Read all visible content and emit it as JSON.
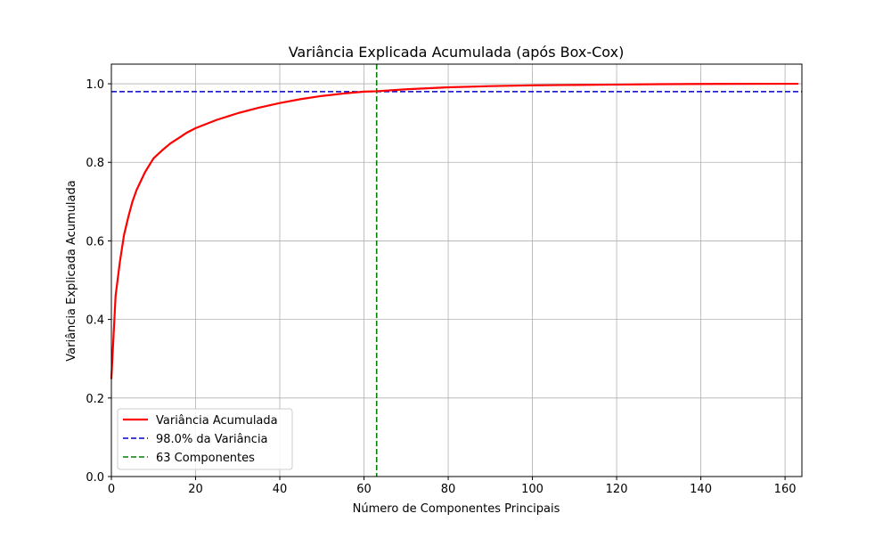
{
  "colors": {
    "cumulative": "#ff0000",
    "threshold": "#0000cc",
    "components": "#008000",
    "grid": "#b0b0b0",
    "axes": "#000000"
  },
  "chart_data": {
    "type": "line",
    "title": "Variância Explicada Acumulada (após Box-Cox)",
    "xlabel": "Número de Componentes Principais",
    "ylabel": "Variância Explicada Acumulada",
    "xlim": [
      0,
      164
    ],
    "ylim": [
      0,
      1.05
    ],
    "xticks": [
      0,
      20,
      40,
      60,
      80,
      100,
      120,
      140,
      160
    ],
    "xtick_labels": [
      "0",
      "20",
      "40",
      "60",
      "80",
      "100",
      "120",
      "140",
      "160"
    ],
    "yticks": [
      0.0,
      0.2,
      0.4,
      0.6,
      0.8,
      1.0
    ],
    "ytick_labels": [
      "0.0",
      "0.2",
      "0.4",
      "0.6",
      "0.8",
      "1.0"
    ],
    "grid": true,
    "legend_position": "lower-left",
    "series": [
      {
        "name": "Variância Acumulada",
        "style": "solid",
        "x": [
          0,
          1,
          2,
          3,
          4,
          5,
          6,
          8,
          10,
          12,
          14,
          16,
          18,
          20,
          25,
          30,
          35,
          40,
          45,
          50,
          55,
          60,
          63,
          70,
          80,
          90,
          100,
          110,
          120,
          130,
          140,
          150,
          160,
          163
        ],
        "y": [
          0.25,
          0.46,
          0.545,
          0.615,
          0.66,
          0.7,
          0.73,
          0.775,
          0.81,
          0.83,
          0.848,
          0.862,
          0.876,
          0.887,
          0.908,
          0.925,
          0.939,
          0.951,
          0.961,
          0.969,
          0.975,
          0.98,
          0.981,
          0.986,
          0.991,
          0.994,
          0.996,
          0.997,
          0.998,
          0.999,
          0.9995,
          0.9998,
          1.0,
          1.0
        ]
      }
    ],
    "reference_lines": [
      {
        "name": "98.0% da Variância",
        "orientation": "horizontal",
        "value": 0.98,
        "style": "dashed"
      },
      {
        "name": "63 Componentes",
        "orientation": "vertical",
        "value": 63,
        "style": "dashed"
      }
    ],
    "legend": [
      "Variância Acumulada",
      "98.0% da Variância",
      "63 Componentes"
    ]
  }
}
